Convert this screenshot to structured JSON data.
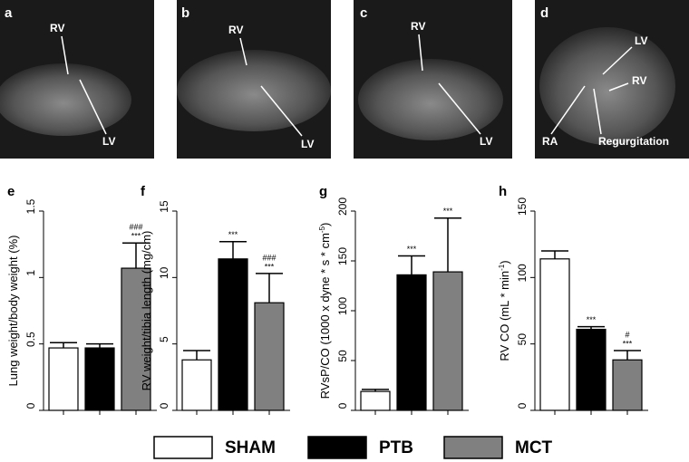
{
  "images": [
    {
      "letter": "a",
      "labels": [
        "RV",
        "LV"
      ]
    },
    {
      "letter": "b",
      "labels": [
        "RV",
        "LV"
      ]
    },
    {
      "letter": "c",
      "labels": [
        "RV",
        "LV"
      ]
    },
    {
      "letter": "d",
      "labels": [
        "LV",
        "RV",
        "RA",
        "Regurgitation"
      ]
    }
  ],
  "groups": [
    {
      "name": "SHAM",
      "color": "#ffffff"
    },
    {
      "name": "PTB",
      "color": "#000000"
    },
    {
      "name": "MCT",
      "color": "#808080"
    }
  ],
  "chart_data": [
    {
      "type": "bar",
      "panel": "e",
      "ylabel": [
        "Lung weight/body weight (%)"
      ],
      "ylim": [
        0,
        1.5
      ],
      "yticks": [
        0,
        0.5,
        1,
        1.5
      ],
      "values": [
        0.47,
        0.47,
        1.07
      ],
      "errors": [
        0.04,
        0.03,
        0.19
      ],
      "annotations": [
        {
          "index": 2,
          "lines": [
            "###",
            "***"
          ]
        }
      ]
    },
    {
      "type": "bar",
      "panel": "f",
      "ylabel": [
        "RV weight/tibia length (mg/cm)"
      ],
      "ylim": [
        0,
        15
      ],
      "yticks": [
        0,
        5,
        10,
        15
      ],
      "values": [
        3.8,
        11.4,
        8.1
      ],
      "errors": [
        0.7,
        1.3,
        2.2
      ],
      "annotations": [
        {
          "index": 1,
          "lines": [
            "***"
          ]
        },
        {
          "index": 2,
          "lines": [
            "###",
            "***"
          ]
        }
      ]
    },
    {
      "type": "bar",
      "panel": "g",
      "ylabel": [
        "RVsP/CO (1000 x dyne * s * cm",
        "-5",
        ")"
      ],
      "ylim": [
        0,
        200
      ],
      "yticks": [
        0,
        50,
        100,
        150,
        200
      ],
      "values": [
        19,
        136,
        139
      ],
      "errors": [
        2,
        19,
        54
      ],
      "annotations": [
        {
          "index": 1,
          "lines": [
            "***"
          ]
        },
        {
          "index": 2,
          "lines": [
            "***"
          ]
        }
      ]
    },
    {
      "type": "bar",
      "panel": "h",
      "ylabel": [
        "RV CO (mL * min",
        "-1",
        ")"
      ],
      "ylim": [
        0,
        150
      ],
      "yticks": [
        0,
        50,
        100,
        150
      ],
      "values": [
        114,
        61,
        38
      ],
      "errors": [
        6,
        2,
        7
      ],
      "annotations": [
        {
          "index": 1,
          "lines": [
            "***"
          ]
        },
        {
          "index": 2,
          "lines": [
            "#",
            "***"
          ]
        }
      ]
    }
  ]
}
